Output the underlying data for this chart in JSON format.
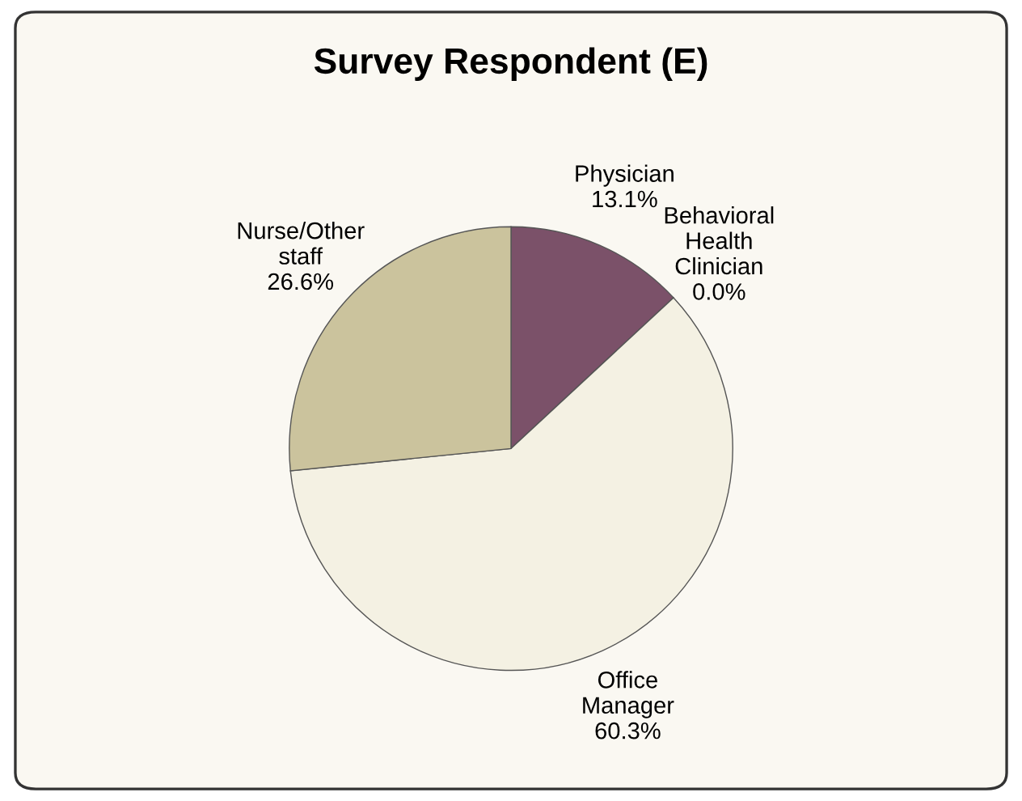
{
  "chart_data": {
    "type": "pie",
    "title": "Survey Respondent (E)",
    "categories": [
      "Physician",
      "Behavioral\nHealth\nClinician",
      "Office\nManager",
      "Nurse/Other\nstaff"
    ],
    "values": [
      13.1,
      0.0,
      60.3,
      26.6
    ],
    "value_labels": [
      "13.1%",
      "0.0%",
      "60.3%",
      "26.6%"
    ],
    "colors": [
      "#7b5169",
      "#7f8fb5",
      "#f4f1e3",
      "#cbc39d"
    ],
    "legend": false
  }
}
